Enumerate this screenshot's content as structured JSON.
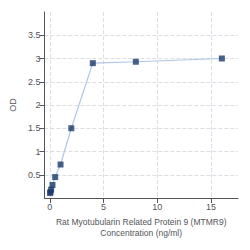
{
  "chart_data": {
    "type": "line",
    "xlabel": "Rat Myotubularin Related Protein 9 (MTMR9)\nConcentration (ng/ml)",
    "ylabel": "OD",
    "x": [
      0.0313,
      0.0625,
      0.125,
      0.25,
      0.5,
      1,
      2,
      4,
      8,
      16
    ],
    "series": [
      {
        "type": "line",
        "color": "#aec6e8",
        "values": [
          0.105,
          0.13,
          0.18,
          0.28,
          0.45,
          0.72,
          1.5,
          2.9,
          2.93,
          3.0
        ]
      },
      {
        "type": "scatter",
        "color": "#1a3a6b",
        "marker": "square",
        "values": [
          0.105,
          0.13,
          0.18,
          0.28,
          0.45,
          0.72,
          1.5,
          2.9,
          2.93,
          3.0
        ]
      }
    ],
    "xlim": [
      -0.5,
      17.5
    ],
    "xticks": [
      0,
      5,
      10,
      15
    ],
    "ylim": [
      0,
      4.0
    ],
    "yticks": [
      0.5,
      1,
      1.5,
      2,
      2.5,
      3,
      3.5
    ],
    "grid": true
  }
}
